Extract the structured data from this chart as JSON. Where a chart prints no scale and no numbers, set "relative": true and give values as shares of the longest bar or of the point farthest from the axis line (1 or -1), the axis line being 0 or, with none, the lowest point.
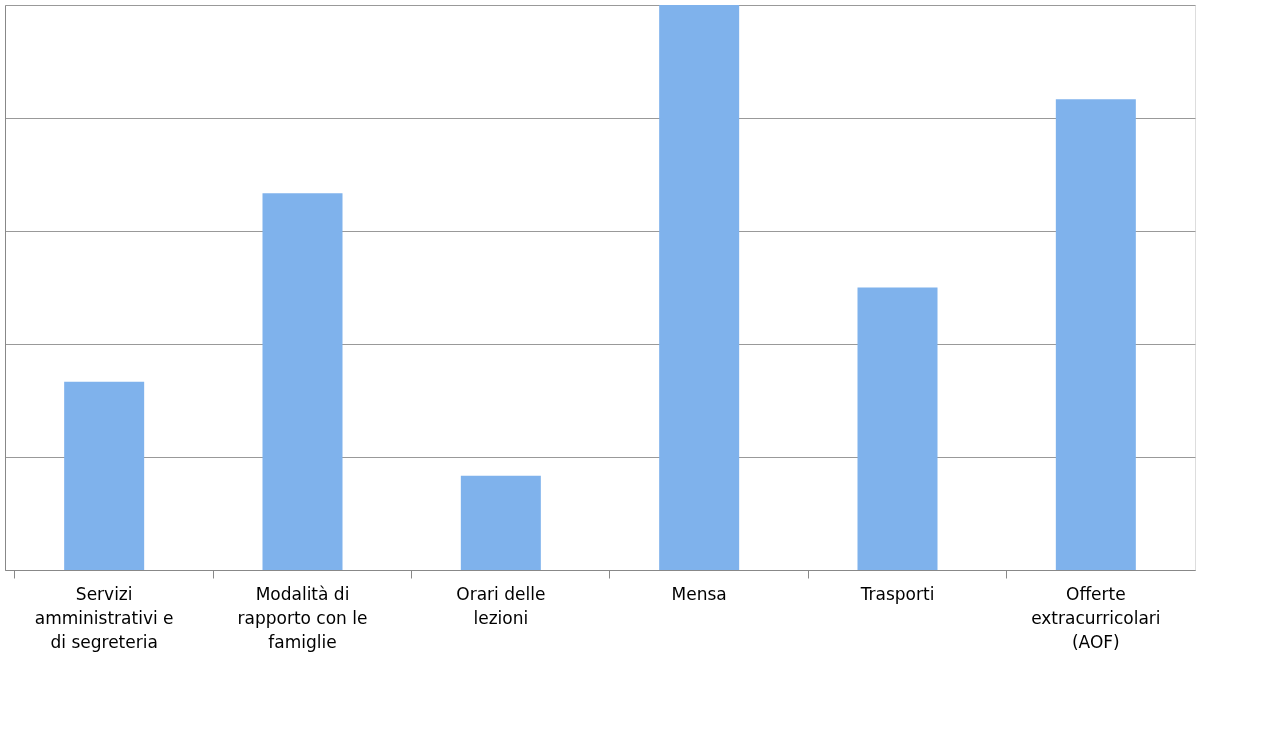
{
  "chart_data": {
    "type": "bar",
    "relative": true,
    "categories": [
      "Servizi amministrativi e di segreteria",
      "Modalità di rapporto con le famiglie",
      "Orari delle lezioni",
      "Mensa",
      "Trasporti",
      "Offerte extracurricolari (AOF)"
    ],
    "values": [
      0.333,
      0.667,
      0.167,
      1,
      0.5,
      0.833
    ],
    "color": "#7fb2ec",
    "grid": "y"
  }
}
